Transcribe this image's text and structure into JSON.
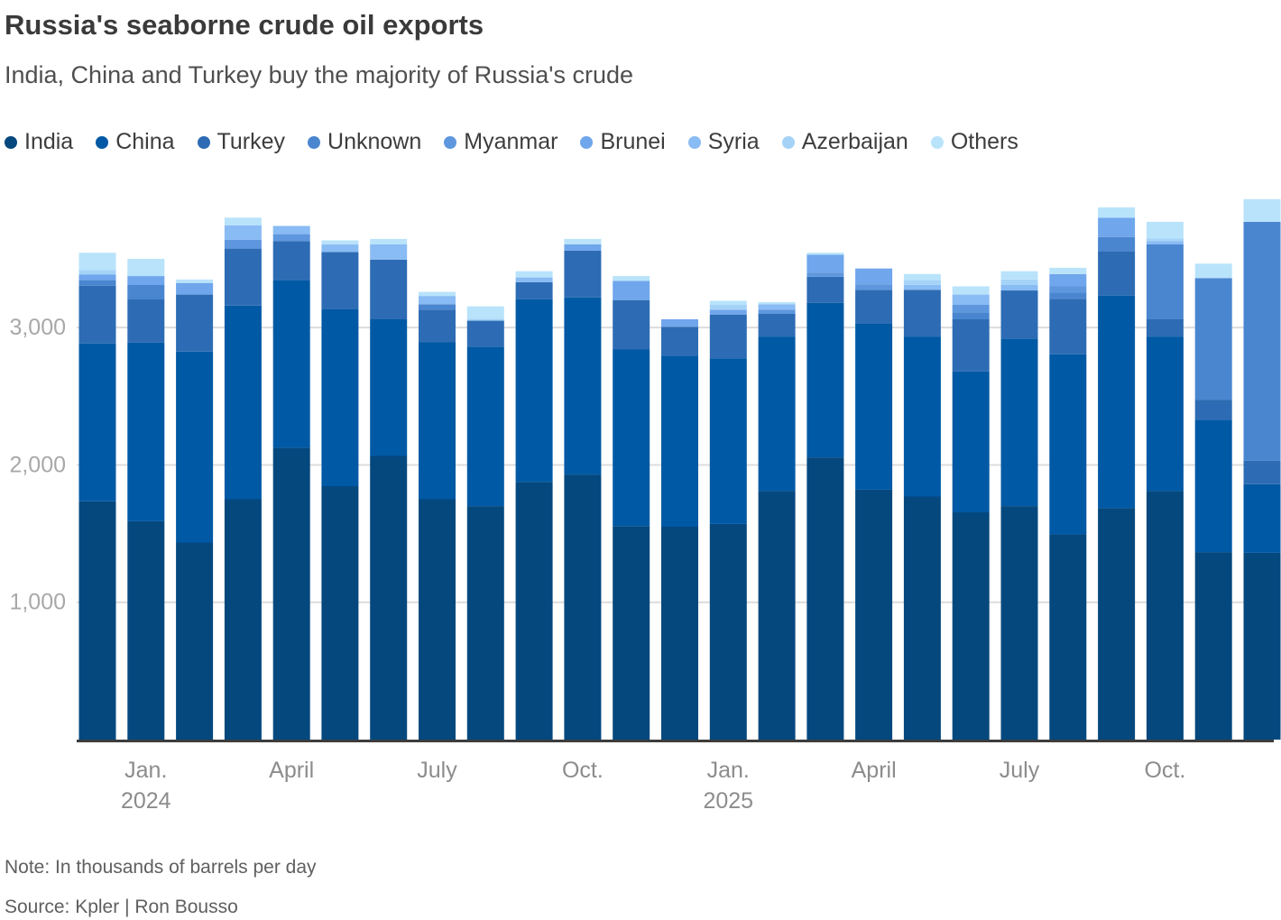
{
  "header": {
    "title": "Russia's seaborne crude oil exports",
    "subtitle": "India, China and Turkey buy the majority of Russia's crude"
  },
  "footer": {
    "note": "Note: In thousands of barrels per day",
    "source": "Source: Kpler | Ron Bousso"
  },
  "chart_data": {
    "type": "bar",
    "stacked": true,
    "title": "Russia's seaborne crude oil exports",
    "subtitle": "India, China and Turkey buy the majority of Russia's crude",
    "unit": "thousands of barrels per day",
    "legend_position": "top",
    "grid": true,
    "ylim": [
      0,
      4000
    ],
    "categories": [
      "Dec 2023",
      "Jan 2024",
      "Feb 2024",
      "Mar 2024",
      "Apr 2024",
      "May 2024",
      "Jun 2024",
      "Jul 2024",
      "Aug 2024",
      "Sep 2024",
      "Oct 2024",
      "Nov 2024",
      "Dec 2024",
      "Jan 2025",
      "Feb 2025",
      "Mar 2025",
      "Apr 2025",
      "May 2025",
      "Jun 2025",
      "Jul 2025",
      "Aug 2025",
      "Sep 2025",
      "Oct 2025",
      "Nov 2025",
      "Dec 2025"
    ],
    "series": [
      {
        "name": "India",
        "color": "#04487e",
        "values": [
          1735,
          1590,
          1435,
          1750,
          2125,
          1845,
          2065,
          1750,
          1700,
          1875,
          1930,
          1555,
          1550,
          1570,
          1810,
          2055,
          1820,
          1770,
          1655,
          1700,
          1495,
          1685,
          1810,
          1365,
          1360
        ]
      },
      {
        "name": "China",
        "color": "#0059a5",
        "values": [
          1150,
          1300,
          1390,
          1410,
          1220,
          1290,
          995,
          1145,
          1160,
          1330,
          1290,
          1285,
          1245,
          1205,
          1125,
          1125,
          1210,
          1165,
          1025,
          1220,
          1310,
          1550,
          1125,
          965,
          500
        ]
      },
      {
        "name": "Turkey",
        "color": "#2d6cb4",
        "values": [
          420,
          315,
          415,
          415,
          285,
          415,
          435,
          235,
          190,
          125,
          340,
          360,
          210,
          320,
          165,
          190,
          245,
          340,
          380,
          350,
          405,
          320,
          125,
          145,
          170
        ]
      },
      {
        "name": "Unknown",
        "color": "#4a86d0",
        "values": [
          40,
          105,
          0,
          0,
          0,
          0,
          0,
          40,
          0,
          0,
          0,
          0,
          0,
          0,
          0,
          0,
          0,
          0,
          50,
          0,
          45,
          105,
          545,
          885,
          1740
        ]
      },
      {
        "name": "Myanmar",
        "color": "#5e97de",
        "values": [
          0,
          0,
          0,
          65,
          50,
          0,
          0,
          0,
          0,
          0,
          0,
          0,
          0,
          0,
          30,
          30,
          40,
          0,
          55,
          0,
          45,
          0,
          0,
          0,
          0
        ]
      },
      {
        "name": "Brunei",
        "color": "#6fa6ec",
        "values": [
          40,
          65,
          85,
          0,
          0,
          0,
          0,
          0,
          0,
          0,
          45,
          140,
          55,
          35,
          0,
          130,
          115,
          0,
          0,
          0,
          90,
          140,
          0,
          0,
          0
        ]
      },
      {
        "name": "Syria",
        "color": "#89bbf4",
        "values": [
          0,
          0,
          0,
          105,
          60,
          55,
          110,
          60,
          0,
          35,
          0,
          0,
          0,
          0,
          40,
          0,
          0,
          35,
          75,
          40,
          0,
          0,
          25,
          0,
          0
        ]
      },
      {
        "name": "Azerbaijan",
        "color": "#a5d3f8",
        "values": [
          35,
          0,
          0,
          0,
          0,
          0,
          0,
          0,
          15,
          0,
          0,
          0,
          0,
          35,
          0,
          0,
          0,
          35,
          0,
          40,
          0,
          0,
          20,
          0,
          0
        ]
      },
      {
        "name": "Others",
        "color": "#b9e3fb",
        "values": [
          125,
          125,
          25,
          55,
          0,
          30,
          40,
          30,
          90,
          45,
          40,
          35,
          0,
          30,
          15,
          15,
          0,
          45,
          60,
          60,
          45,
          75,
          120,
          105,
          165
        ]
      }
    ],
    "y_axis": {
      "ticks": [
        1000,
        2000,
        3000
      ],
      "tick_labels": [
        "1,000",
        "2,000",
        "3,000"
      ]
    },
    "x_axis": {
      "ticks": [
        {
          "index": 1,
          "label": "Jan.",
          "sublabel": "2024"
        },
        {
          "index": 4,
          "label": "April"
        },
        {
          "index": 7,
          "label": "July"
        },
        {
          "index": 10,
          "label": "Oct."
        },
        {
          "index": 13,
          "label": "Jan.",
          "sublabel": "2025"
        },
        {
          "index": 16,
          "label": "April"
        },
        {
          "index": 19,
          "label": "July"
        },
        {
          "index": 22,
          "label": "Oct."
        }
      ]
    }
  }
}
